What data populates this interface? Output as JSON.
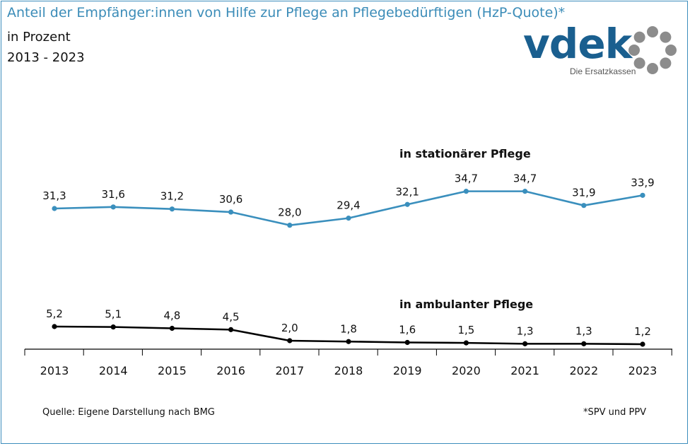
{
  "header": {
    "title": "Anteil der Empfänger:innen von Hilfe zur Pflege an Pflegebedürftigen (HzP-Quote)*",
    "subtitle": "in Prozent",
    "period": "2013 - 2023"
  },
  "logo": {
    "word": "vdek",
    "tagline": "Die Ersatzkassen",
    "icon": "ring-of-dots-icon"
  },
  "footer": {
    "source": "Quelle: Eigene Darstellung nach BMG",
    "footnote": "*SPV und PPV"
  },
  "colors": {
    "accent": "#3b8cb8",
    "stationaer": "#3a8fbd",
    "ambulant": "#000000",
    "axis": "#000000"
  },
  "chart_data": {
    "type": "line",
    "x": [
      "2013",
      "2014",
      "2015",
      "2016",
      "2017",
      "2018",
      "2019",
      "2020",
      "2021",
      "2022",
      "2023"
    ],
    "series": [
      {
        "name": "in stationärer Pflege",
        "values": [
          31.3,
          31.6,
          31.2,
          30.6,
          28.0,
          29.4,
          32.1,
          34.7,
          34.7,
          31.9,
          33.9
        ],
        "labels": [
          "31,3",
          "31,6",
          "31,2",
          "30,6",
          "28,0",
          "29,4",
          "32,1",
          "34,7",
          "34,7",
          "31,9",
          "33,9"
        ]
      },
      {
        "name": "in ambulanter Pflege",
        "values": [
          5.2,
          5.1,
          4.8,
          4.5,
          2.0,
          1.8,
          1.6,
          1.5,
          1.3,
          1.3,
          1.2
        ],
        "labels": [
          "5,2",
          "5,1",
          "4,8",
          "4,5",
          "2,0",
          "1,8",
          "1,6",
          "1,5",
          "1,3",
          "1,3",
          "1,2"
        ]
      }
    ],
    "grid": false,
    "legend": "inline series labels"
  }
}
